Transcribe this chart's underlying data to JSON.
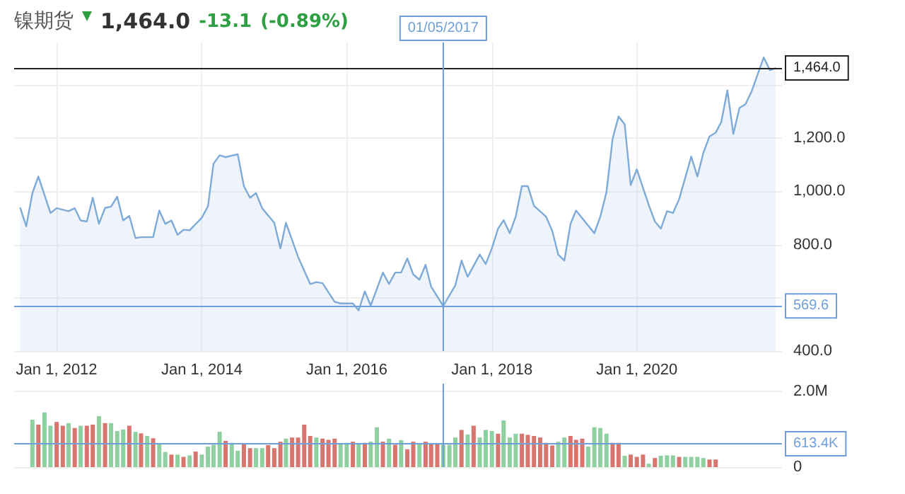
{
  "chart_data": [
    {
      "type": "area",
      "title": "镍期货",
      "annotations": [
        "1,464.0",
        "-13.1",
        "(-0.89%)"
      ],
      "x": [
        "2011-07",
        "2011-08",
        "2011-09",
        "2011-10",
        "2011-12",
        "2012-01",
        "2012-03",
        "2012-04",
        "2012-05",
        "2012-06",
        "2012-07",
        "2012-08",
        "2012-09",
        "2012-10",
        "2012-11",
        "2012-12",
        "2013-01",
        "2013-02",
        "2013-03",
        "2013-05",
        "2013-06",
        "2013-07",
        "2013-08",
        "2013-09",
        "2013-10",
        "2013-11",
        "2014-01",
        "2014-02",
        "2014-03",
        "2014-04",
        "2014-05",
        "2014-07",
        "2014-08",
        "2014-09",
        "2014-10",
        "2014-11",
        "2015-01",
        "2015-02",
        "2015-03",
        "2015-05",
        "2015-07",
        "2015-08",
        "2015-09",
        "2015-11",
        "2015-12",
        "2016-02",
        "2016-03",
        "2016-04",
        "2016-05",
        "2016-07",
        "2016-08",
        "2016-09",
        "2016-10",
        "2016-11",
        "2016-12",
        "2017-01",
        "2017-02",
        "2017-03",
        "2017-05",
        "2017-07",
        "2017-08",
        "2017-09",
        "2017-11",
        "2017-12",
        "2018-01",
        "2018-02",
        "2018-03",
        "2018-04",
        "2018-05",
        "2018-06",
        "2018-07",
        "2018-08",
        "2018-10",
        "2018-11",
        "2018-12",
        "2019-01",
        "2019-02",
        "2019-03",
        "2019-06",
        "2019-07",
        "2019-08",
        "2019-09",
        "2019-10",
        "2019-11",
        "2019-12",
        "2020-01",
        "2020-03",
        "2020-04",
        "2020-05",
        "2020-06",
        "2020-07",
        "2020-08",
        "2020-10",
        "2020-11",
        "2020-12",
        "2021-01",
        "2021-02",
        "2021-03",
        "2021-04",
        "2021-05",
        "2021-06",
        "2021-07",
        "2021-08",
        "2021-10",
        "2021-11",
        "2021-12"
      ],
      "series": [
        {
          "color": "#7eaad8",
          "values": [
            940,
            869,
            994,
            1056,
            919,
            937,
            926,
            937,
            891,
            887,
            976,
            878,
            938,
            943,
            980,
            891,
            908,
            825,
            828,
            828,
            928,
            878,
            891,
            837,
            856,
            854,
            901,
            944,
            1104,
            1136,
            1129,
            1140,
            1020,
            976,
            994,
            937,
            882,
            786,
            882,
            754,
            652,
            659,
            655,
            585,
            579,
            579,
            553,
            624,
            571,
            695,
            652,
            695,
            695,
            748,
            688,
            668,
            724,
            642,
            569.6,
            647,
            740,
            679,
            763,
            727,
            786,
            860,
            892,
            843,
            905,
            1020,
            1020,
            946,
            905,
            852,
            763,
            740,
            878,
            928,
            843,
            905,
            997,
            1198,
            1282,
            1252,
            1024,
            1083,
            949,
            887,
            860,
            926,
            919,
            971,
            1131,
            1056,
            1145,
            1207,
            1221,
            1260,
            1380,
            1216,
            1314,
            1328,
            1376,
            1504,
            1456,
            1464
          ]
        }
      ],
      "xlim": [
        "2011-06",
        "2022-01"
      ],
      "xticks": [
        {
          "value": "2012-01-01",
          "label": "Jan 1, 2012"
        },
        {
          "value": "2014-01-01",
          "label": "Jan 1, 2014"
        },
        {
          "value": "2016-01-01",
          "label": "Jan 1, 2016"
        },
        {
          "value": "2018-01-01",
          "label": "Jan 1, 2018"
        },
        {
          "value": "2020-01-01",
          "label": "Jan 1, 2020"
        }
      ],
      "ylim": [
        400,
        1560
      ],
      "yticks": [
        {
          "value": 400,
          "label": "400.0"
        },
        {
          "value": 600,
          "label": null
        },
        {
          "value": 800,
          "label": "800.0"
        },
        {
          "value": 1000,
          "label": "1,000.0"
        },
        {
          "value": 1200,
          "label": "1,200.0"
        },
        {
          "value": 1400,
          "label": null
        }
      ],
      "ref_lines": [
        {
          "axis": "y",
          "value": 1464,
          "label": "1,464.0",
          "color": "#222222"
        },
        {
          "axis": "y",
          "value": 569.6,
          "label": "569.6",
          "color": "#6f9fd8"
        },
        {
          "axis": "x",
          "value": "2017-05-01",
          "label": "01/05/2017",
          "color": "#6f9fd8"
        }
      ],
      "grid": true
    },
    {
      "type": "bar",
      "x": [
        "2011-09",
        "2011-10",
        "2011-11",
        "2011-12",
        "2012-01",
        "2012-02",
        "2012-03",
        "2012-04",
        "2012-05",
        "2012-06",
        "2012-07",
        "2012-08",
        "2012-09",
        "2012-10",
        "2012-11",
        "2012-12",
        "2013-01",
        "2013-02",
        "2013-03",
        "2013-04",
        "2013-05",
        "2013-06",
        "2013-07",
        "2013-08",
        "2013-09",
        "2013-10",
        "2013-11",
        "2013-12",
        "2014-01",
        "2014-02",
        "2014-03",
        "2014-04",
        "2014-05",
        "2014-06",
        "2014-07",
        "2014-08",
        "2014-09",
        "2014-10",
        "2014-11",
        "2014-12",
        "2015-01",
        "2015-02",
        "2015-03",
        "2015-04",
        "2015-05",
        "2015-06",
        "2015-07",
        "2015-08",
        "2015-09",
        "2015-10",
        "2015-11",
        "2015-12",
        "2016-01",
        "2016-02",
        "2016-03",
        "2016-04",
        "2016-05",
        "2016-06",
        "2016-07",
        "2016-08",
        "2016-09",
        "2016-10",
        "2016-11",
        "2016-12",
        "2017-01",
        "2017-02",
        "2017-03",
        "2017-04",
        "2017-05",
        "2017-06",
        "2017-07",
        "2017-08",
        "2017-09",
        "2017-10",
        "2017-11",
        "2017-12",
        "2018-01",
        "2018-02",
        "2018-03",
        "2018-04",
        "2018-05",
        "2018-06",
        "2018-07",
        "2018-08",
        "2018-09",
        "2018-10",
        "2018-11",
        "2018-12",
        "2019-01",
        "2019-02",
        "2019-03",
        "2019-04",
        "2019-05",
        "2019-06",
        "2019-07",
        "2019-08",
        "2019-09",
        "2019-10",
        "2019-11",
        "2019-12",
        "2020-01",
        "2020-02",
        "2020-03",
        "2020-04",
        "2020-05",
        "2020-06",
        "2020-07",
        "2020-08",
        "2020-09",
        "2020-10",
        "2020-11",
        "2020-12",
        "2021-01",
        "2021-02"
      ],
      "values": [
        1250000,
        1120000,
        1440000,
        1090000,
        1190000,
        1090000,
        1160000,
        1030000,
        1090000,
        1090000,
        1120000,
        1340000,
        1160000,
        1160000,
        950000,
        990000,
        1090000,
        930000,
        890000,
        820000,
        760000,
        610000,
        400000,
        330000,
        330000,
        270000,
        310000,
        410000,
        330000,
        540000,
        590000,
        930000,
        690000,
        640000,
        430000,
        600000,
        500000,
        500000,
        500000,
        580000,
        500000,
        670000,
        750000,
        780000,
        780000,
        1120000,
        820000,
        780000,
        750000,
        720000,
        750000,
        610000,
        640000,
        670000,
        610000,
        640000,
        670000,
        1050000,
        670000,
        750000,
        590000,
        710000,
        470000,
        670000,
        610000,
        670000,
        610000,
        610000,
        590000,
        590000,
        780000,
        980000,
        860000,
        1090000,
        780000,
        980000,
        950000,
        880000,
        1230000,
        780000,
        880000,
        880000,
        850000,
        820000,
        780000,
        640000,
        570000,
        670000,
        780000,
        820000,
        720000,
        750000,
        540000,
        1050000,
        1030000,
        880000,
        640000,
        640000,
        300000,
        330000,
        270000,
        330000,
        90000,
        240000,
        300000,
        310000,
        310000,
        270000,
        270000,
        270000,
        270000,
        240000,
        200000,
        200000
      ],
      "colors": [
        "#8fd0a0",
        "#d9756f",
        "#8fd0a0",
        "#8fd0a0",
        "#d9756f",
        "#d9756f",
        "#8fd0a0",
        "#d9756f",
        "#8fd0a0",
        "#d9756f",
        "#d9756f",
        "#8fd0a0",
        "#d9756f",
        "#8fd0a0",
        "#8fd0a0",
        "#8fd0a0",
        "#d9756f",
        "#8fd0a0",
        "#d9756f",
        "#8fd0a0",
        "#d9756f",
        "#8fd0a0",
        "#8fd0a0",
        "#d9756f",
        "#8fd0a0",
        "#d9756f",
        "#8fd0a0",
        "#d9756f",
        "#8fd0a0",
        "#8fd0a0",
        "#8fd0a0",
        "#8fd0a0",
        "#d9756f",
        "#8fd0a0",
        "#8fd0a0",
        "#d9756f",
        "#d9756f",
        "#8fd0a0",
        "#8fd0a0",
        "#d9756f",
        "#d9756f",
        "#d9756f",
        "#8fd0a0",
        "#d9756f",
        "#d9756f",
        "#d9756f",
        "#d9756f",
        "#8fd0a0",
        "#d9756f",
        "#d9756f",
        "#d9756f",
        "#8fd0a0",
        "#8fd0a0",
        "#d9756f",
        "#8fd0a0",
        "#d9756f",
        "#8fd0a0",
        "#8fd0a0",
        "#d9756f",
        "#8fd0a0",
        "#d9756f",
        "#8fd0a0",
        "#d9756f",
        "#d9756f",
        "#8fd0a0",
        "#d9756f",
        "#d9756f",
        "#d9756f",
        "#8fd0a0",
        "#8fd0a0",
        "#8fd0a0",
        "#d9756f",
        "#8fd0a0",
        "#d9756f",
        "#8fd0a0",
        "#8fd0a0",
        "#8fd0a0",
        "#d9756f",
        "#8fd0a0",
        "#8fd0a0",
        "#8fd0a0",
        "#d9756f",
        "#d9756f",
        "#d9756f",
        "#d9756f",
        "#d9756f",
        "#d9756f",
        "#8fd0a0",
        "#8fd0a0",
        "#d9756f",
        "#d9756f",
        "#d9756f",
        "#8fd0a0",
        "#8fd0a0",
        "#8fd0a0",
        "#8fd0a0",
        "#d9756f",
        "#d9756f",
        "#8fd0a0",
        "#d9756f",
        "#d9756f",
        "#d9756f",
        "#8fd0a0",
        "#d9756f",
        "#8fd0a0",
        "#8fd0a0",
        "#8fd0a0",
        "#d9756f",
        "#8fd0a0",
        "#8fd0a0",
        "#8fd0a0",
        "#8fd0a0",
        "#d9756f",
        "#d9756f"
      ],
      "xlim": [
        "2011-06",
        "2022-01"
      ],
      "ylim": [
        0,
        2200000
      ],
      "yticks": [
        {
          "value": 0,
          "label": "0"
        },
        {
          "value": 2000000,
          "label": "2.0M"
        }
      ],
      "ref_lines": [
        {
          "axis": "y",
          "value": 613400,
          "label": "613.4K",
          "color": "#6f9fd8"
        },
        {
          "axis": "x",
          "value": "2017-05-01",
          "label": null,
          "color": "#6f9fd8"
        }
      ],
      "tick_labels": "y",
      "grid": true
    }
  ]
}
